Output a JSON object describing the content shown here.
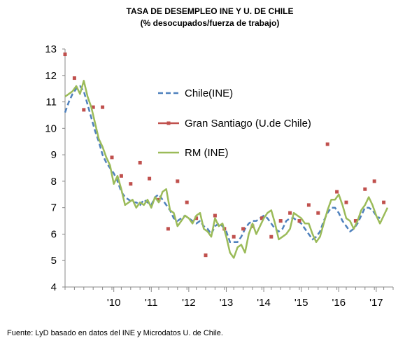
{
  "chart_data": {
    "type": "line",
    "title": "TASA  DE  DESEMPLEO INE Y U. DE CHILE",
    "subtitle": "(% desocupados/fuerza de trabajo)",
    "source": "Fuente: LyD basado en datos del INE y Microdatos U. de Chile.",
    "ylim": [
      4,
      13
    ],
    "yticks": [
      "4",
      "5",
      "6",
      "7",
      "8",
      "9",
      "10",
      "11",
      "12",
      "13"
    ],
    "xlim": [
      2009.0,
      2017.75
    ],
    "xticks": [
      {
        "label": "'10",
        "x": 2010.3
      },
      {
        "label": "'11",
        "x": 2011.3
      },
      {
        "label": "'12",
        "x": 2012.3
      },
      {
        "label": "'13",
        "x": 2013.3
      },
      {
        "label": "'14",
        "x": 2014.3
      },
      {
        "label": "'15",
        "x": 2015.3
      },
      {
        "label": "'16",
        "x": 2016.3
      },
      {
        "label": "'17",
        "x": 2017.3
      }
    ],
    "grid": false,
    "legend": "upper-center",
    "series": [
      {
        "name": "Chile(INE)",
        "style": "dashed",
        "color": "#4f81bd",
        "points": [
          [
            2009.0,
            10.6
          ],
          [
            2009.1,
            11.0
          ],
          [
            2009.2,
            11.3
          ],
          [
            2009.3,
            11.5
          ],
          [
            2009.4,
            11.6
          ],
          [
            2009.5,
            11.4
          ],
          [
            2009.6,
            10.9
          ],
          [
            2009.7,
            10.4
          ],
          [
            2009.8,
            9.9
          ],
          [
            2009.9,
            9.5
          ],
          [
            2010.0,
            9.0
          ],
          [
            2010.1,
            8.7
          ],
          [
            2010.2,
            8.5
          ],
          [
            2010.3,
            8.3
          ],
          [
            2010.4,
            8.0
          ],
          [
            2010.5,
            7.6
          ],
          [
            2010.6,
            7.4
          ],
          [
            2010.7,
            7.3
          ],
          [
            2010.8,
            7.2
          ],
          [
            2010.9,
            7.2
          ],
          [
            2011.0,
            7.1
          ],
          [
            2011.1,
            7.3
          ],
          [
            2011.2,
            7.2
          ],
          [
            2011.3,
            7.1
          ],
          [
            2011.4,
            7.4
          ],
          [
            2011.5,
            7.5
          ],
          [
            2011.6,
            7.3
          ],
          [
            2011.7,
            7.1
          ],
          [
            2011.8,
            6.9
          ],
          [
            2011.9,
            6.6
          ],
          [
            2012.0,
            6.5
          ],
          [
            2012.1,
            6.6
          ],
          [
            2012.2,
            6.7
          ],
          [
            2012.3,
            6.6
          ],
          [
            2012.4,
            6.5
          ],
          [
            2012.5,
            6.4
          ],
          [
            2012.6,
            6.5
          ],
          [
            2012.7,
            6.3
          ],
          [
            2012.8,
            6.2
          ],
          [
            2012.9,
            6.0
          ],
          [
            2013.0,
            6.3
          ],
          [
            2013.1,
            6.4
          ],
          [
            2013.2,
            6.3
          ],
          [
            2013.3,
            6.1
          ],
          [
            2013.4,
            5.7
          ],
          [
            2013.5,
            5.7
          ],
          [
            2013.6,
            5.7
          ],
          [
            2013.7,
            5.9
          ],
          [
            2013.8,
            6.2
          ],
          [
            2013.9,
            6.4
          ],
          [
            2014.0,
            6.5
          ],
          [
            2014.1,
            6.5
          ],
          [
            2014.2,
            6.6
          ],
          [
            2014.3,
            6.7
          ],
          [
            2014.4,
            6.6
          ],
          [
            2014.5,
            6.4
          ],
          [
            2014.6,
            6.2
          ],
          [
            2014.7,
            6.1
          ],
          [
            2014.8,
            6.2
          ],
          [
            2014.9,
            6.5
          ],
          [
            2015.0,
            6.6
          ],
          [
            2015.1,
            6.6
          ],
          [
            2015.2,
            6.5
          ],
          [
            2015.3,
            6.4
          ],
          [
            2015.4,
            6.2
          ],
          [
            2015.5,
            6.0
          ],
          [
            2015.6,
            5.8
          ],
          [
            2015.7,
            5.9
          ],
          [
            2015.8,
            6.1
          ],
          [
            2015.9,
            6.5
          ],
          [
            2016.0,
            6.8
          ],
          [
            2016.1,
            7.0
          ],
          [
            2016.2,
            7.0
          ],
          [
            2016.3,
            6.8
          ],
          [
            2016.4,
            6.5
          ],
          [
            2016.5,
            6.3
          ],
          [
            2016.6,
            6.1
          ],
          [
            2016.7,
            6.2
          ],
          [
            2016.8,
            6.4
          ],
          [
            2016.9,
            6.7
          ],
          [
            2017.0,
            7.0
          ],
          [
            2017.1,
            7.0
          ],
          [
            2017.2,
            6.9
          ],
          [
            2017.3,
            6.7
          ],
          [
            2017.4,
            6.6
          ]
        ]
      },
      {
        "name": "Gran  Santiago (U.de Chile)",
        "style": "markers",
        "color": "#c0504d",
        "points": [
          [
            2009.0,
            12.8
          ],
          [
            2009.25,
            11.9
          ],
          [
            2009.5,
            10.7
          ],
          [
            2009.75,
            10.8
          ],
          [
            2010.0,
            10.8
          ],
          [
            2010.25,
            8.9
          ],
          [
            2010.5,
            8.2
          ],
          [
            2010.75,
            7.9
          ],
          [
            2011.0,
            8.7
          ],
          [
            2011.25,
            8.1
          ],
          [
            2011.5,
            7.3
          ],
          [
            2011.75,
            6.2
          ],
          [
            2012.0,
            8.0
          ],
          [
            2012.25,
            7.2
          ],
          [
            2012.5,
            6.6
          ],
          [
            2012.75,
            5.2
          ],
          [
            2013.0,
            6.7
          ],
          [
            2013.25,
            6.2
          ],
          [
            2013.5,
            5.9
          ],
          [
            2013.75,
            6.2
          ],
          [
            2014.0,
            6.3
          ],
          [
            2014.25,
            6.6
          ],
          [
            2014.5,
            5.9
          ],
          [
            2014.75,
            6.5
          ],
          [
            2015.0,
            6.8
          ],
          [
            2015.25,
            6.5
          ],
          [
            2015.5,
            7.1
          ],
          [
            2015.75,
            6.8
          ],
          [
            2016.0,
            9.4
          ],
          [
            2016.25,
            7.6
          ],
          [
            2016.5,
            7.2
          ],
          [
            2016.75,
            6.5
          ],
          [
            2017.0,
            7.7
          ],
          [
            2017.25,
            8.0
          ],
          [
            2017.5,
            7.2
          ]
        ]
      },
      {
        "name": "RM (INE)",
        "style": "solid",
        "color": "#9bbb59",
        "points": [
          [
            2009.0,
            11.2
          ],
          [
            2009.1,
            11.3
          ],
          [
            2009.2,
            11.4
          ],
          [
            2009.3,
            11.6
          ],
          [
            2009.4,
            11.3
          ],
          [
            2009.5,
            11.8
          ],
          [
            2009.6,
            11.2
          ],
          [
            2009.7,
            10.8
          ],
          [
            2009.8,
            10.2
          ],
          [
            2009.9,
            9.6
          ],
          [
            2010.0,
            9.3
          ],
          [
            2010.1,
            8.9
          ],
          [
            2010.2,
            8.6
          ],
          [
            2010.3,
            7.9
          ],
          [
            2010.4,
            8.2
          ],
          [
            2010.5,
            7.7
          ],
          [
            2010.6,
            7.1
          ],
          [
            2010.7,
            7.2
          ],
          [
            2010.8,
            7.3
          ],
          [
            2010.9,
            7.0
          ],
          [
            2011.0,
            7.2
          ],
          [
            2011.1,
            7.1
          ],
          [
            2011.2,
            7.3
          ],
          [
            2011.3,
            7.0
          ],
          [
            2011.4,
            7.4
          ],
          [
            2011.5,
            7.2
          ],
          [
            2011.6,
            7.6
          ],
          [
            2011.7,
            7.7
          ],
          [
            2011.8,
            6.9
          ],
          [
            2011.9,
            6.8
          ],
          [
            2012.0,
            6.3
          ],
          [
            2012.1,
            6.5
          ],
          [
            2012.2,
            6.7
          ],
          [
            2012.3,
            6.6
          ],
          [
            2012.4,
            6.4
          ],
          [
            2012.5,
            6.7
          ],
          [
            2012.6,
            6.8
          ],
          [
            2012.7,
            6.2
          ],
          [
            2012.8,
            6.1
          ],
          [
            2012.9,
            5.9
          ],
          [
            2013.0,
            6.6
          ],
          [
            2013.1,
            6.3
          ],
          [
            2013.2,
            6.4
          ],
          [
            2013.3,
            5.9
          ],
          [
            2013.4,
            5.3
          ],
          [
            2013.5,
            5.1
          ],
          [
            2013.6,
            5.5
          ],
          [
            2013.7,
            5.6
          ],
          [
            2013.8,
            5.3
          ],
          [
            2013.9,
            6.0
          ],
          [
            2014.0,
            6.4
          ],
          [
            2014.1,
            6.0
          ],
          [
            2014.2,
            6.3
          ],
          [
            2014.3,
            6.6
          ],
          [
            2014.4,
            6.8
          ],
          [
            2014.5,
            6.9
          ],
          [
            2014.6,
            6.4
          ],
          [
            2014.7,
            5.8
          ],
          [
            2014.8,
            5.9
          ],
          [
            2014.9,
            6.0
          ],
          [
            2015.0,
            6.2
          ],
          [
            2015.1,
            6.8
          ],
          [
            2015.2,
            6.7
          ],
          [
            2015.3,
            6.6
          ],
          [
            2015.4,
            6.4
          ],
          [
            2015.5,
            6.4
          ],
          [
            2015.6,
            6.0
          ],
          [
            2015.7,
            5.7
          ],
          [
            2015.8,
            5.9
          ],
          [
            2015.9,
            6.4
          ],
          [
            2016.0,
            6.9
          ],
          [
            2016.1,
            7.3
          ],
          [
            2016.2,
            7.3
          ],
          [
            2016.3,
            7.5
          ],
          [
            2016.4,
            7.1
          ],
          [
            2016.5,
            6.6
          ],
          [
            2016.6,
            6.5
          ],
          [
            2016.7,
            6.2
          ],
          [
            2016.8,
            6.5
          ],
          [
            2016.9,
            6.9
          ],
          [
            2017.0,
            7.1
          ],
          [
            2017.1,
            7.4
          ],
          [
            2017.2,
            7.1
          ],
          [
            2017.3,
            6.7
          ],
          [
            2017.4,
            6.4
          ],
          [
            2017.5,
            6.7
          ],
          [
            2017.6,
            7.0
          ]
        ]
      }
    ]
  }
}
